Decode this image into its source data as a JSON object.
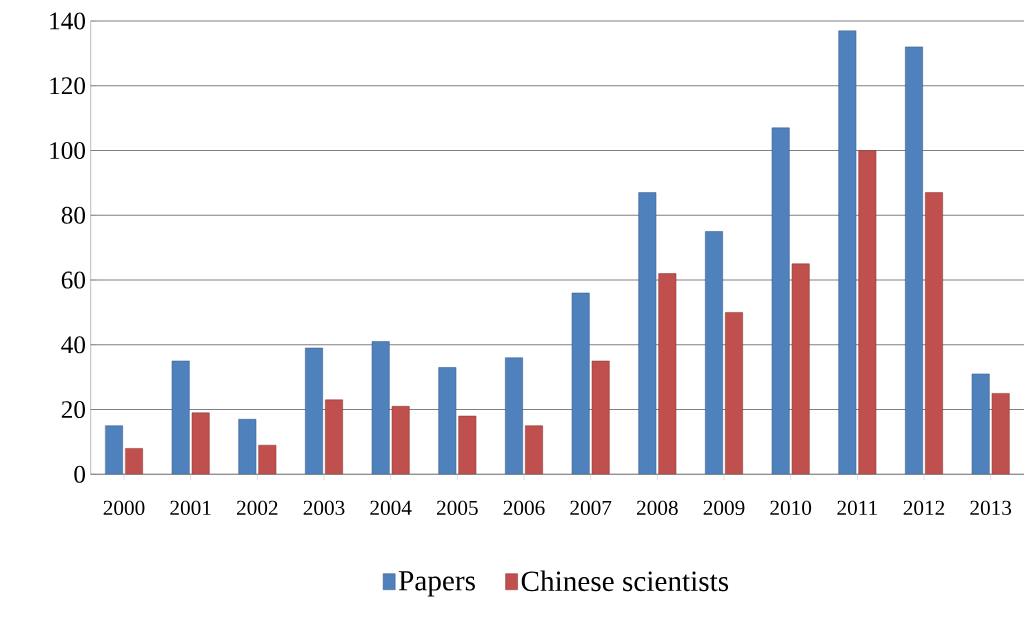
{
  "chart_data": {
    "type": "bar",
    "categories": [
      "2000",
      "2001",
      "2002",
      "2003",
      "2004",
      "2005",
      "2006",
      "2007",
      "2008",
      "2009",
      "2010",
      "2011",
      "2012",
      "2013"
    ],
    "series": [
      {
        "name": "Papers",
        "color": "#4f81bd",
        "values": [
          15,
          35,
          17,
          39,
          41,
          33,
          36,
          56,
          87,
          75,
          107,
          137,
          132,
          31
        ]
      },
      {
        "name": "Chinese scientists",
        "color": "#c0504d",
        "values": [
          8,
          19,
          9,
          23,
          21,
          18,
          15,
          35,
          62,
          50,
          65,
          100,
          87,
          25
        ]
      }
    ],
    "ylim": [
      0,
      140
    ],
    "yticks": [
      0,
      20,
      40,
      60,
      80,
      100,
      120,
      140
    ],
    "grid": "y",
    "legend": "bottom"
  }
}
